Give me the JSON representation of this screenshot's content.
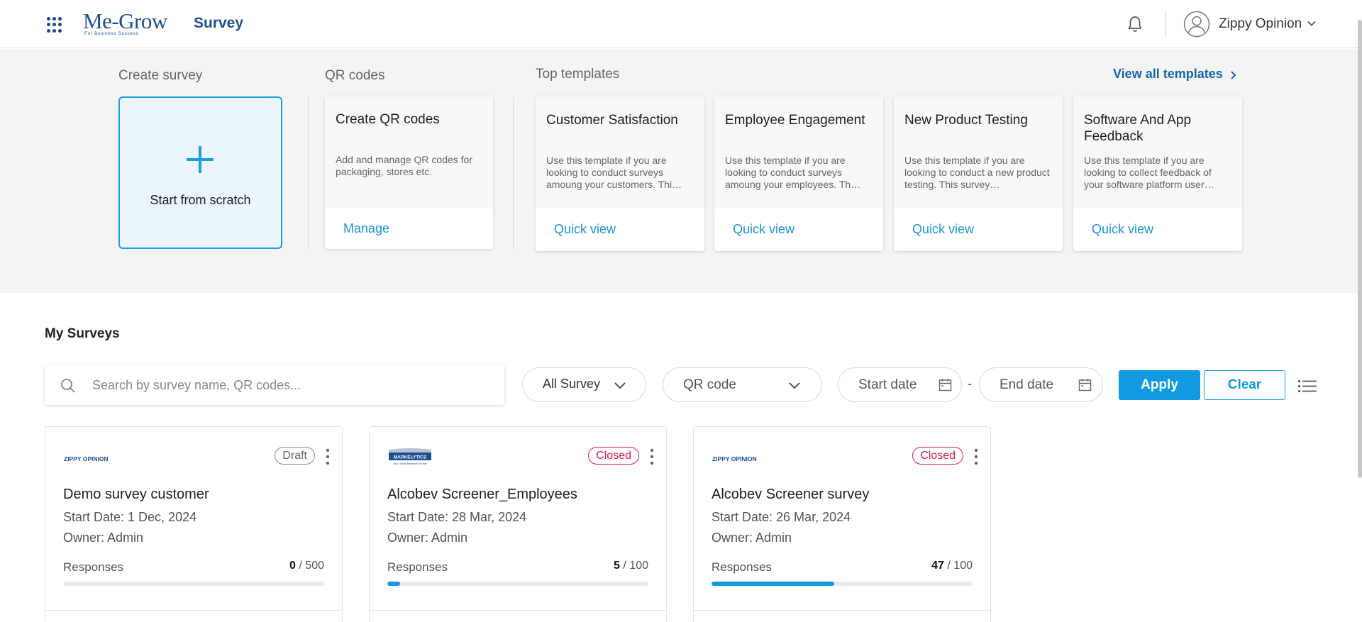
{
  "header": {
    "logo_text": "Me-Grow",
    "logo_tagline": "For Business Success",
    "section_title": "Survey",
    "user_name": "Zippy Opinion"
  },
  "create": {
    "label": "Create survey",
    "scratch_label": "Start from scratch"
  },
  "qr": {
    "label": "QR codes",
    "card_title": "Create QR codes",
    "card_desc": "Add and manage QR codes for packaging, stores etc.",
    "card_link": "Manage"
  },
  "templates": {
    "label": "Top templates",
    "view_all": "View all templates",
    "items": [
      {
        "title": "Customer Satisfaction",
        "desc": "Use this template if you are looking to conduct surveys amoung your customers. Thi…",
        "link": "Quick view"
      },
      {
        "title": "Employee Engagement",
        "desc": "Use this template if you are looking to conduct surveys amoung your employees. Th…",
        "link": "Quick view"
      },
      {
        "title": "New Product Testing",
        "desc": "Use this template if you are looking to conduct a new product testing. This survey…",
        "link": "Quick view"
      },
      {
        "title": "Software And App Feedback",
        "desc": "Use this template if you are looking to collect feedback of your software platform user…",
        "link": "Quick view"
      }
    ]
  },
  "surveys": {
    "heading": "My Surveys",
    "search_placeholder": "Search by survey name, QR codes...",
    "filter_all": "All Survey",
    "filter_qr": "QR code",
    "start_date_placeholder": "Start date",
    "date_separator": "-",
    "end_date_placeholder": "End date",
    "apply_label": "Apply",
    "clear_label": "Clear",
    "responses_label": "Responses",
    "items": [
      {
        "brand": "ZIPPY OPINION",
        "status": "Draft",
        "title": "Demo survey customer",
        "start_date": "Start Date: 1 Dec, 2024",
        "owner": "Owner: Admin",
        "responses": "0",
        "limit": "500",
        "progress": 0.0
      },
      {
        "brand": "MARKELYTICS",
        "brand_tagline": "Your Global Research Partner",
        "status": "Closed",
        "title": "Alcobev Screener_Employees",
        "start_date": "Start Date: 28 Mar, 2024",
        "owner": "Owner: Admin",
        "responses": "5",
        "limit": "100",
        "progress": 0.05
      },
      {
        "brand": "ZIPPY OPINION",
        "status": "Closed",
        "title": "Alcobev Screener survey",
        "start_date": "Start Date: 26 Mar, 2024",
        "owner": "Owner: Admin",
        "responses": "47",
        "limit": "100",
        "progress": 0.47
      }
    ]
  },
  "colors": {
    "brand_navy": "#1f4f91",
    "accent_blue": "#119ae2",
    "closed_red": "#d81e4f",
    "panel_gray": "#f4f4f4"
  },
  "icons": [
    "apps-grid-icon",
    "bell-icon",
    "user-avatar-icon",
    "chevron-down-icon",
    "plus-icon",
    "chevron-right-icon",
    "search-icon",
    "calendar-icon",
    "list-view-icon",
    "kebab-menu-icon"
  ]
}
